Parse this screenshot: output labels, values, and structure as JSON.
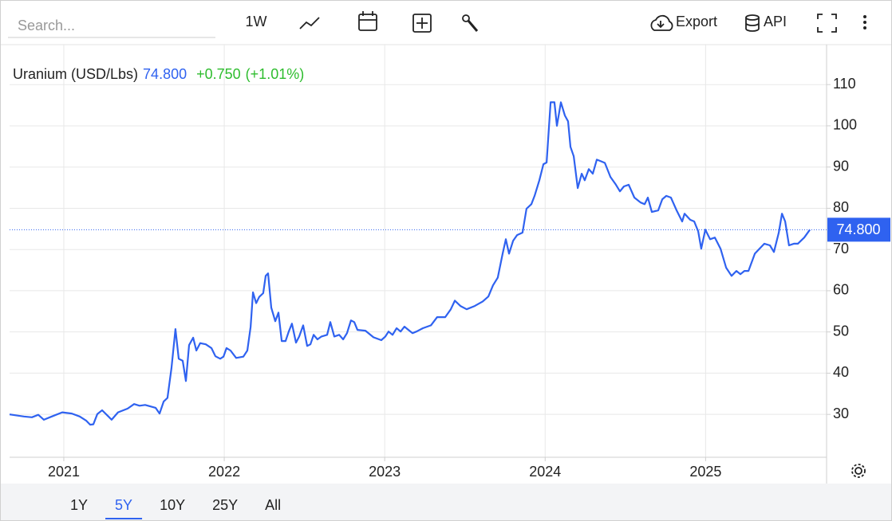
{
  "toolbar": {
    "search_placeholder": "Search...",
    "interval": "1W",
    "export": "Export",
    "api": "API"
  },
  "chart_data": {
    "type": "line",
    "last_label": "74.800",
    "change": "+0.750",
    "change_pct": "(+1.01%)",
    "x": [
      2020.662,
      2020.751,
      2020.801,
      2020.841,
      2020.876,
      2020.925,
      2020.99,
      2021.05,
      2021.099,
      2021.139,
      2021.164,
      2021.184,
      2021.209,
      2021.239,
      2021.278,
      2021.298,
      2021.338,
      2021.398,
      2021.438,
      2021.472,
      2021.507,
      2021.572,
      2021.597,
      2021.622,
      2021.646,
      2021.671,
      2021.696,
      2021.716,
      2021.741,
      2021.761,
      2021.781,
      2021.806,
      2021.826,
      2021.85,
      2021.885,
      2021.92,
      2021.945,
      2021.975,
      2021.995,
      2022.014,
      2022.039,
      2022.074,
      2022.119,
      2022.144,
      2022.164,
      2022.179,
      2022.199,
      2022.218,
      2022.243,
      2022.258,
      2022.273,
      2022.293,
      2022.318,
      2022.338,
      2022.358,
      2022.382,
      2022.402,
      2022.422,
      2022.447,
      2022.467,
      2022.492,
      2022.517,
      2022.537,
      2022.557,
      2022.581,
      2022.606,
      2022.641,
      2022.661,
      2022.686,
      2022.716,
      2022.741,
      2022.765,
      2022.79,
      2022.81,
      2022.83,
      2022.88,
      2022.93,
      2022.979,
      2023.004,
      2023.024,
      2023.049,
      2023.074,
      2023.099,
      2023.123,
      2023.148,
      2023.173,
      2023.198,
      2023.238,
      2023.288,
      2023.327,
      2023.377,
      2023.412,
      2023.437,
      2023.472,
      2023.511,
      2023.561,
      2023.611,
      2023.646,
      2023.675,
      2023.705,
      2023.735,
      2023.755,
      2023.775,
      2023.8,
      2023.825,
      2023.859,
      2023.884,
      2023.914,
      2023.934,
      2023.964,
      2023.989,
      2024.009,
      2024.034,
      2024.058,
      2024.073,
      2024.098,
      2024.123,
      2024.143,
      2024.158,
      2024.178,
      2024.203,
      2024.228,
      2024.247,
      2024.272,
      2024.297,
      2024.322,
      2024.347,
      2024.372,
      2024.407,
      2024.441,
      2024.466,
      2024.491,
      2024.521,
      2024.556,
      2024.595,
      2024.62,
      2024.64,
      2024.665,
      2024.705,
      2024.73,
      2024.755,
      2024.784,
      2024.819,
      2024.854,
      2024.869,
      2024.904,
      2024.929,
      2024.954,
      2024.973,
      2024.998,
      2025.028,
      2025.058,
      2025.093,
      2025.128,
      2025.162,
      2025.192,
      2025.217,
      2025.242,
      2025.267,
      2025.307,
      2025.336,
      2025.366,
      2025.401,
      2025.426,
      2025.456,
      2025.476,
      2025.496,
      2025.52,
      2025.55,
      2025.575,
      2025.615,
      2025.65
    ],
    "series": [
      {
        "name": "Uranium (USD/Lbs)",
        "color": "#2f62f0",
        "values": [
          30.0,
          29.5,
          29.3,
          29.9,
          28.7,
          29.5,
          30.5,
          30.2,
          29.5,
          28.5,
          27.5,
          27.6,
          30.1,
          31.0,
          29.5,
          28.7,
          30.5,
          31.4,
          32.5,
          32.1,
          32.3,
          31.6,
          30.2,
          33.1,
          34.0,
          41.2,
          50.7,
          43.5,
          43.0,
          38.1,
          46.8,
          48.6,
          45.5,
          47.3,
          47.0,
          46.1,
          44.1,
          43.5,
          44.0,
          46.1,
          45.5,
          43.7,
          44.0,
          45.5,
          51.2,
          59.6,
          57.0,
          58.5,
          59.4,
          63.6,
          64.2,
          55.9,
          52.6,
          54.7,
          47.8,
          47.8,
          50.1,
          52.0,
          47.4,
          48.9,
          51.6,
          46.6,
          47.0,
          49.3,
          48.2,
          48.9,
          49.3,
          52.4,
          48.9,
          49.3,
          48.2,
          49.7,
          52.8,
          52.4,
          50.5,
          50.3,
          48.7,
          48.0,
          48.9,
          50.1,
          49.3,
          50.9,
          50.1,
          51.3,
          50.5,
          49.7,
          50.1,
          50.9,
          51.6,
          53.6,
          53.6,
          55.5,
          57.6,
          56.3,
          55.5,
          56.3,
          57.4,
          58.6,
          61.3,
          63.2,
          69.0,
          72.5,
          69.0,
          72.1,
          73.5,
          74.1,
          79.9,
          81.0,
          83.0,
          86.8,
          90.7,
          91.1,
          105.7,
          105.7,
          100.0,
          105.7,
          102.5,
          101.1,
          94.9,
          92.6,
          84.9,
          88.4,
          86.8,
          89.5,
          88.4,
          91.8,
          91.4,
          91.0,
          87.6,
          85.7,
          84.1,
          85.3,
          85.7,
          82.6,
          81.4,
          81.0,
          82.6,
          79.1,
          79.5,
          82.2,
          83.0,
          82.6,
          79.5,
          76.8,
          78.7,
          77.2,
          76.8,
          74.4,
          70.2,
          74.8,
          72.5,
          72.9,
          70.2,
          65.6,
          63.6,
          64.8,
          64.0,
          64.8,
          64.8,
          69.0,
          70.2,
          71.4,
          71.0,
          69.4,
          74.1,
          78.7,
          76.8,
          71.0,
          71.4,
          71.4,
          72.9,
          74.8
        ]
      }
    ],
    "xlim": [
      2020.662,
      2025.754
    ],
    "xticks": [
      2021,
      2022,
      2023,
      2024,
      2025
    ],
    "ylim": [
      19.6,
      119.7
    ],
    "yticks": [
      30,
      40,
      50,
      60,
      70,
      80,
      90,
      100,
      110
    ],
    "grid": true
  },
  "ranges": {
    "options": [
      "1Y",
      "5Y",
      "10Y",
      "25Y",
      "All"
    ],
    "active": 1
  }
}
